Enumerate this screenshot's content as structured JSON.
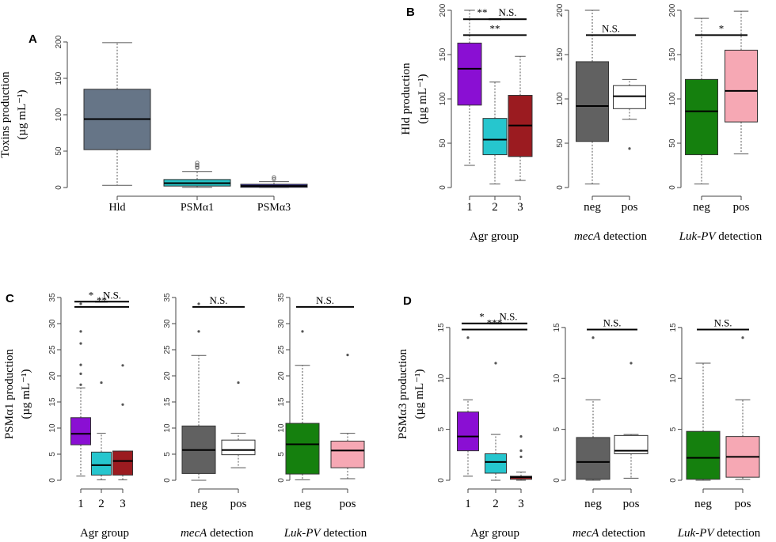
{
  "colors": {
    "slate": "#667587",
    "turquoise": "#26c1c4",
    "navy": "#2f2a99",
    "purple": "#8a0fd3",
    "cyan": "#26c6ce",
    "darkred": "#9b1b20",
    "gray": "#616161",
    "white": "#ffffff",
    "green": "#15800e",
    "pink": "#f6a8b4"
  },
  "chart_data": [
    {
      "panel": "A",
      "type": "box",
      "ylabel_line1": "Toxins production",
      "ylabel_line2": "(µg mL⁻¹)",
      "ylim": [
        0,
        200
      ],
      "yticks": [
        0,
        50,
        100,
        150,
        200
      ],
      "groups": [
        {
          "label": "Hld",
          "q1": 52,
          "median": 94,
          "q3": 135,
          "min": 3,
          "max": 199,
          "color": "#667587",
          "outliers": []
        },
        {
          "label": "PSMα1",
          "q1": 2,
          "median": 6,
          "q3": 11,
          "min": 0.3,
          "max": 22,
          "color": "#26c1c4",
          "outliers": [
            27,
            29,
            31,
            34
          ]
        },
        {
          "label": "PSMα3",
          "q1": 0.3,
          "median": 2,
          "q3": 4.5,
          "min": 0.1,
          "max": 8,
          "color": "#2f2a99",
          "outliers": [
            11.5,
            14
          ]
        }
      ]
    },
    {
      "panel": "B",
      "type": "box",
      "ylabel_line1": "Hld production",
      "ylabel_line2": "(µg mL⁻¹)",
      "ylim": [
        0,
        200
      ],
      "yticks": [
        0,
        50,
        100,
        150,
        200
      ],
      "subplots": [
        {
          "xlabel_italic": "",
          "xlabel_plain": "Agr group",
          "groups": [
            {
              "label": "1",
              "q1": 93,
              "median": 134,
              "q3": 163,
              "min": 25,
              "max": 200,
              "color": "#8a0fd3",
              "outliers": []
            },
            {
              "label": "2",
              "q1": 37,
              "median": 54,
              "q3": 78,
              "min": 4,
              "max": 119,
              "color": "#26c6ce",
              "outliers": []
            },
            {
              "label": "3",
              "q1": 35,
              "median": 70,
              "q3": 104,
              "min": 8,
              "max": 148,
              "color": "#9b1b20",
              "outliers": []
            }
          ],
          "brackets": [
            {
              "from": 0,
              "to": 1,
              "y": 190,
              "text": "**"
            },
            {
              "from": 1,
              "to": 2,
              "y": 190,
              "text": "N.S."
            },
            {
              "from": 0,
              "to": 2,
              "y": 172,
              "text": "**"
            }
          ]
        },
        {
          "xlabel_italic": "mecA",
          "xlabel_plain": " detection",
          "groups": [
            {
              "label": "neg",
              "q1": 52,
              "median": 92,
              "q3": 142,
              "min": 4,
              "max": 200,
              "color": "#616161",
              "outliers": []
            },
            {
              "label": "pos",
              "q1": 89,
              "median": 103,
              "q3": 115,
              "min": 77,
              "max": 122,
              "color": "#ffffff",
              "outliers": [
                44
              ]
            }
          ],
          "brackets": [
            {
              "from": 0,
              "to": 1,
              "y": 172,
              "text": "N.S."
            }
          ]
        },
        {
          "xlabel_italic": "Luk-PV",
          "xlabel_plain": " detection",
          "groups": [
            {
              "label": "neg",
              "q1": 37,
              "median": 86,
              "q3": 122,
              "min": 4,
              "max": 191,
              "color": "#15800e",
              "outliers": []
            },
            {
              "label": "pos",
              "q1": 74,
              "median": 109,
              "q3": 155,
              "min": 38,
              "max": 199,
              "color": "#f6a8b4",
              "outliers": []
            }
          ],
          "brackets": [
            {
              "from": 0,
              "to": 1,
              "y": 172,
              "text": "*"
            }
          ]
        }
      ]
    },
    {
      "panel": "C",
      "type": "box",
      "ylabel_line1": "PSMα1 production",
      "ylabel_line2": "(µg mL⁻¹)",
      "ylim": [
        0,
        35
      ],
      "yticks": [
        0,
        5,
        10,
        15,
        20,
        25,
        30,
        35
      ],
      "subplots": [
        {
          "xlabel_italic": "",
          "xlabel_plain": "Agr group",
          "groups": [
            {
              "label": "1",
              "q1": 6.8,
              "median": 8.9,
              "q3": 12,
              "min": 0.8,
              "max": 17.7,
              "color": "#8a0fd3",
              "outliers": [
                18.3,
                20.4,
                22.1,
                26.2,
                28.5,
                33.8
              ]
            },
            {
              "label": "2",
              "q1": 1,
              "median": 2.9,
              "q3": 5.4,
              "min": 0.1,
              "max": 9,
              "color": "#26c6ce",
              "outliers": [
                18.7
              ]
            },
            {
              "label": "3",
              "q1": 1,
              "median": 3.7,
              "q3": 5.6,
              "min": 0.1,
              "max": 5.6,
              "color": "#9b1b20",
              "outliers": [
                14.5,
                22
              ]
            }
          ],
          "brackets": [
            {
              "from": 0,
              "to": 1,
              "y": 34.2,
              "text": "*"
            },
            {
              "from": 1,
              "to": 2,
              "y": 34.2,
              "text": "N.S."
            },
            {
              "from": 0,
              "to": 2,
              "y": 33.2,
              "text": "**"
            }
          ]
        },
        {
          "xlabel_italic": "mecA",
          "xlabel_plain": " detection",
          "groups": [
            {
              "label": "neg",
              "q1": 1.3,
              "median": 5.8,
              "q3": 10.4,
              "min": 0,
              "max": 23.9,
              "color": "#616161",
              "outliers": [
                28.5,
                33.8
              ]
            },
            {
              "label": "pos",
              "q1": 4.9,
              "median": 5.8,
              "q3": 7.7,
              "min": 2.4,
              "max": 9,
              "color": "#ffffff",
              "outliers": [
                18.7
              ]
            }
          ],
          "brackets": [
            {
              "from": 0,
              "to": 1,
              "y": 33.2,
              "text": "N.S."
            }
          ]
        },
        {
          "xlabel_italic": "Luk-PV",
          "xlabel_plain": " detection",
          "groups": [
            {
              "label": "neg",
              "q1": 1.2,
              "median": 6.9,
              "q3": 10.9,
              "min": 0.1,
              "max": 22,
              "color": "#15800e",
              "outliers": [
                28.5
              ]
            },
            {
              "label": "pos",
              "q1": 2.4,
              "median": 5.7,
              "q3": 7.5,
              "min": 0.3,
              "max": 9,
              "color": "#f6a8b4",
              "outliers": [
                24
              ]
            }
          ],
          "brackets": [
            {
              "from": 0,
              "to": 1,
              "y": 33.2,
              "text": "N.S."
            }
          ]
        }
      ]
    },
    {
      "panel": "D",
      "type": "box",
      "ylabel_line1": "PSMα3 production",
      "ylabel_line2": "(µg mL⁻¹)",
      "ylim": [
        0,
        16
      ],
      "yticks": [
        0,
        5,
        10,
        15
      ],
      "subplots": [
        {
          "xlabel_italic": "",
          "xlabel_plain": "Agr group",
          "groups": [
            {
              "label": "1",
              "q1": 2.9,
              "median": 4.3,
              "q3": 6.7,
              "min": 0.4,
              "max": 7.9,
              "color": "#8a0fd3",
              "outliers": [
                14
              ]
            },
            {
              "label": "2",
              "q1": 0.7,
              "median": 1.8,
              "q3": 2.6,
              "min": 0,
              "max": 4.5,
              "color": "#26c6ce",
              "outliers": [
                11.5
              ]
            },
            {
              "label": "3",
              "q1": 0.1,
              "median": 0.3,
              "q3": 0.4,
              "min": 0,
              "max": 0.8,
              "color": "#9b1b20",
              "outliers": [
                2.3,
                2.9,
                4.3
              ]
            }
          ],
          "brackets": [
            {
              "from": 0,
              "to": 1,
              "y": 15.4,
              "text": "*"
            },
            {
              "from": 1,
              "to": 2,
              "y": 15.4,
              "text": "N.S."
            },
            {
              "from": 0,
              "to": 2,
              "y": 14.8,
              "text": "***"
            }
          ]
        },
        {
          "xlabel_italic": "mecA",
          "xlabel_plain": " detection",
          "groups": [
            {
              "label": "neg",
              "q1": 0.1,
              "median": 1.8,
              "q3": 4.2,
              "min": 0,
              "max": 7.9,
              "color": "#616161",
              "outliers": [
                14
              ]
            },
            {
              "label": "pos",
              "q1": 2.6,
              "median": 2.9,
              "q3": 4.4,
              "min": 0.2,
              "max": 4.5,
              "color": "#ffffff",
              "outliers": [
                11.5
              ]
            }
          ],
          "brackets": [
            {
              "from": 0,
              "to": 1,
              "y": 14.8,
              "text": "N.S."
            }
          ]
        },
        {
          "xlabel_italic": "Luk-PV",
          "xlabel_plain": " detection",
          "groups": [
            {
              "label": "neg",
              "q1": 0.1,
              "median": 2.2,
              "q3": 4.8,
              "min": 0,
              "max": 11.5,
              "color": "#15800e",
              "outliers": []
            },
            {
              "label": "pos",
              "q1": 0.3,
              "median": 2.3,
              "q3": 4.3,
              "min": 0.1,
              "max": 7.9,
              "color": "#f6a8b4",
              "outliers": [
                14
              ]
            }
          ],
          "brackets": [
            {
              "from": 0,
              "to": 1,
              "y": 14.8,
              "text": "N.S."
            }
          ]
        }
      ]
    }
  ]
}
